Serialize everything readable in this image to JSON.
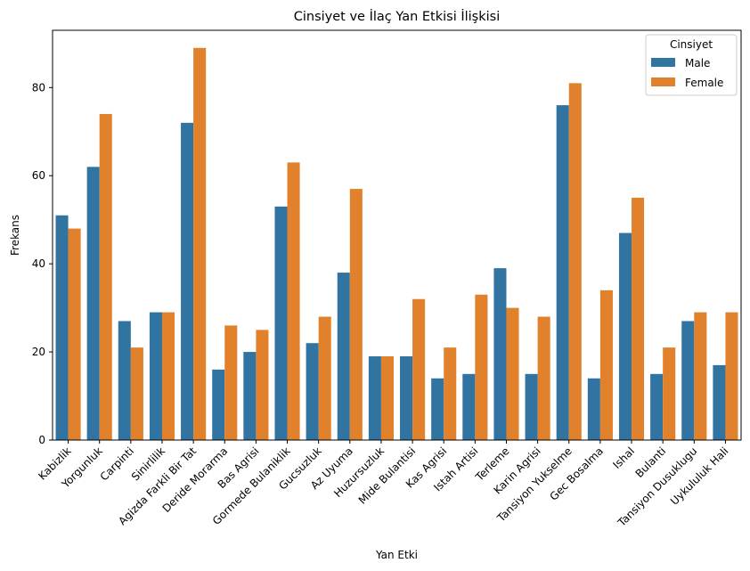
{
  "chart_data": {
    "type": "bar",
    "title": "Cinsiyet ve İlaç Yan Etkisi İlişkisi",
    "xlabel": "Yan Etki",
    "ylabel": "Frekans",
    "ylim": [
      0,
      93
    ],
    "yticks": [
      0,
      20,
      40,
      60,
      80
    ],
    "grid": false,
    "legend": {
      "title": "Cinsiyet",
      "position": "top-right"
    },
    "categories": [
      "Kabizlik",
      "Yorgunluk",
      "Carpinti",
      "Sinirlilik",
      "Agizda Farkli Bir Tat",
      "Deride Morarma",
      "Bas Agrisi",
      "Gormede Bulaniklik",
      "Gucsuzluk",
      "Az Uyuma",
      "Huzursuzluk",
      "Mide Bulantisi",
      "Kas Agrisi",
      "Istah Artisi",
      "Terleme",
      "Karin Agrisi",
      "Tansiyon Yukselme",
      "Gec Bosalma",
      "Ishal",
      "Bulanti",
      "Tansiyon Dusuklugu",
      "Uykululuk Hali"
    ],
    "series": [
      {
        "name": "Male",
        "color": "#3274a1",
        "values": [
          51,
          62,
          27,
          29,
          72,
          16,
          20,
          53,
          22,
          38,
          19,
          19,
          14,
          15,
          39,
          15,
          76,
          14,
          47,
          15,
          27,
          17
        ]
      },
      {
        "name": "Female",
        "color": "#e1812c",
        "values": [
          48,
          74,
          21,
          29,
          89,
          26,
          25,
          63,
          28,
          57,
          19,
          32,
          21,
          33,
          30,
          28,
          81,
          34,
          55,
          21,
          29,
          29
        ]
      }
    ]
  }
}
